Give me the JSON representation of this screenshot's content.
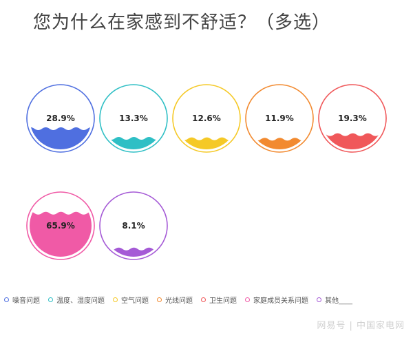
{
  "title": "您为什么在家感到不舒适？（多选）",
  "chart_data": {
    "type": "gauge",
    "title": "您为什么在家感到不舒适？（多选）",
    "categories": [
      "噪音问题",
      "温度、湿度问题",
      "空气问题",
      "光线问题",
      "卫生问题",
      "家庭成员关系问题",
      "其他____"
    ],
    "values": [
      28.9,
      13.3,
      12.6,
      11.9,
      19.3,
      65.9,
      8.1
    ],
    "labels": [
      "28.9%",
      "13.3%",
      "12.6%",
      "11.9%",
      "19.3%",
      "65.9%",
      "8.1%"
    ],
    "colors": [
      "#4f6fe0",
      "#2fbfc5",
      "#f5c927",
      "#f28a30",
      "#f0585a",
      "#f05aa6",
      "#a55ad6"
    ],
    "legend_position": "bottom",
    "ylim": [
      0,
      100
    ]
  },
  "watermark": "网易号 | 中国家电网"
}
